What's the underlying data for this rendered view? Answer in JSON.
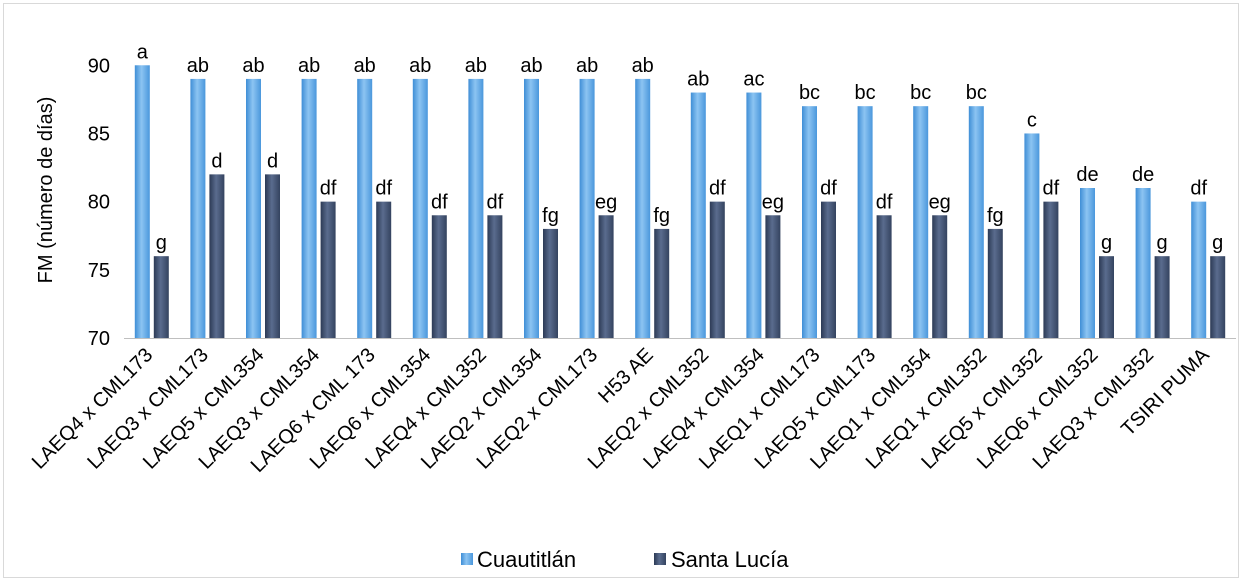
{
  "chart_data": {
    "type": "bar",
    "ylabel": "FM (número de días)",
    "ylim": [
      70,
      92
    ],
    "yticks": [
      70,
      75,
      80,
      85,
      90
    ],
    "grid": false,
    "legend_position": "bottom",
    "categories": [
      "LAEQ4 x CML173",
      "LAEQ3 x CML173",
      "LAEQ5 x CML354",
      "LAEQ3 x CML354",
      "LAEQ6 x CML 173",
      "LAEQ6 x CML354",
      "LAEQ4 x CML352",
      "LAEQ2 x CML354",
      "LAEQ2 x CML173",
      "H53 AE",
      "LAEQ2 x CML352",
      "LAEQ4 x CML354",
      "LAEQ1 x CML173",
      "LAEQ5 x CML173",
      "LAEQ1 x CML354",
      "LAEQ1 x CML352",
      "LAEQ5 x CML352",
      "LAEQ6 x CML352",
      "LAEQ3 x CML352",
      "TSIRI PUMA"
    ],
    "series": [
      {
        "name": "Cuautitlán",
        "color": "#5ba3e0",
        "values": [
          90,
          89,
          89,
          89,
          89,
          89,
          89,
          89,
          89,
          89,
          88,
          88,
          87,
          87,
          87,
          87,
          85,
          81,
          81,
          80
        ],
        "labels": [
          "a",
          "ab",
          "ab",
          "ab",
          "ab",
          "ab",
          "ab",
          "ab",
          "ab",
          "ab",
          "ab",
          "ac",
          "bc",
          "bc",
          "bc",
          "bc",
          "c",
          "de",
          "de",
          "df"
        ]
      },
      {
        "name": "Santa Lucía",
        "color": "#3e4f70",
        "values": [
          76,
          82,
          82,
          80,
          80,
          79,
          79,
          78,
          79,
          78,
          80,
          79,
          80,
          79,
          79,
          78,
          80,
          76,
          76,
          76
        ],
        "labels": [
          "g",
          "d",
          "d",
          "df",
          "df",
          "df",
          "df",
          "fg",
          "eg",
          "fg",
          "df",
          "eg",
          "df",
          "df",
          "eg",
          "fg",
          "df",
          "g",
          "g",
          "g"
        ]
      }
    ]
  }
}
